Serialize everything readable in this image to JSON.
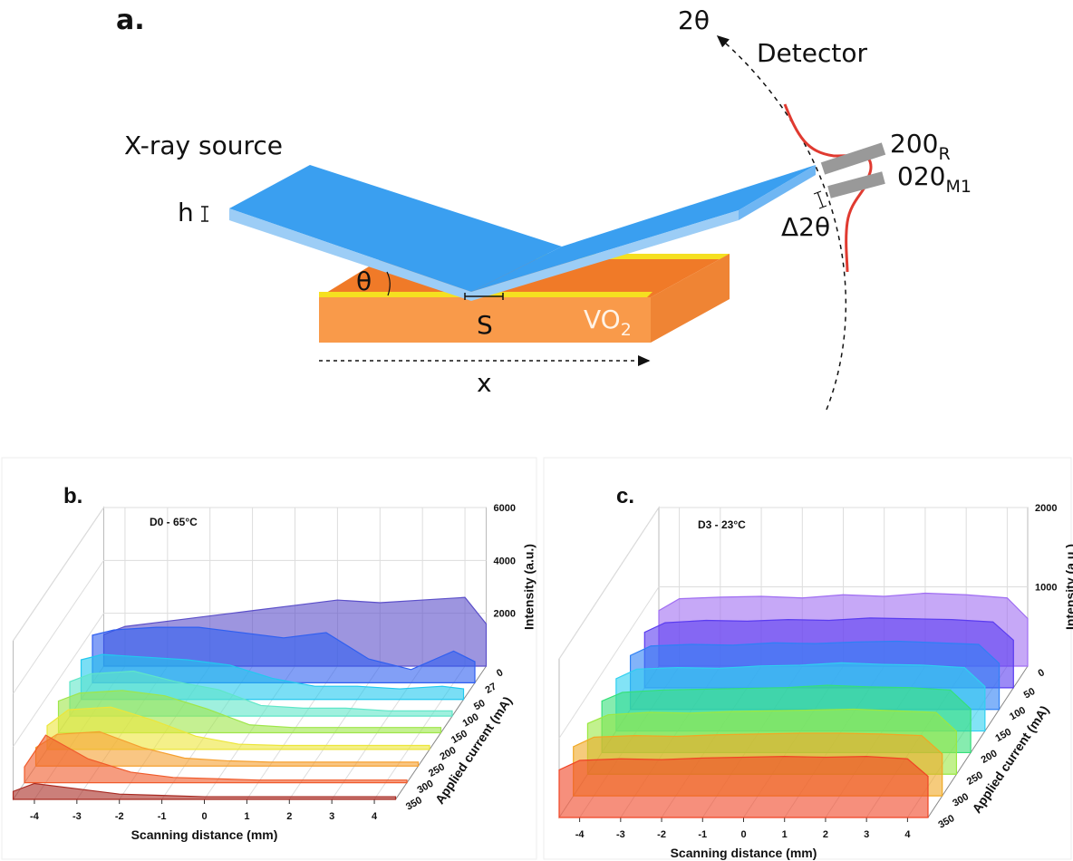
{
  "panel_a": {
    "label": "a.",
    "two_theta": "2θ",
    "detector": "Detector",
    "source": "X-ray source",
    "h": "h",
    "theta": "θ",
    "s": "S",
    "sample": {
      "text": "VO",
      "sub": "2"
    },
    "x_axis": "x",
    "peak_1": {
      "text": "200",
      "sub": "R"
    },
    "peak_2": {
      "text": "020",
      "sub": "M1"
    },
    "delta": "Δ2θ"
  },
  "chart_data": [
    {
      "type": "waterfall3d",
      "panel_label": "b.",
      "annotation": "D0 - 65°C",
      "x_label": "Scanning distance (mm)",
      "z_label": "Intensity (a.u.)",
      "depth_label": "Applied current (mA)",
      "x": [
        -4.5,
        -4,
        -3,
        -2,
        -1,
        0,
        1,
        2,
        3,
        4,
        4.5
      ],
      "xlim": [
        -4.5,
        4.5
      ],
      "xticks": [
        -4,
        -3,
        -2,
        -1,
        0,
        1,
        2,
        3,
        4
      ],
      "ylim": [
        0,
        6000
      ],
      "yticks": [
        2000,
        4000,
        6000
      ],
      "series": [
        {
          "name": "0",
          "color": "#5b4fc9",
          "values": [
            1200,
            1500,
            1700,
            1900,
            2100,
            2300,
            2500,
            2400,
            2500,
            2600,
            1600
          ]
        },
        {
          "name": "27",
          "color": "#2f5ff0",
          "values": [
            1800,
            2000,
            2100,
            2100,
            1900,
            1700,
            1900,
            900,
            500,
            1200,
            800
          ]
        },
        {
          "name": "50",
          "color": "#22c8ef",
          "values": [
            1500,
            1700,
            1600,
            1500,
            1300,
            800,
            500,
            500,
            400,
            500,
            400
          ]
        },
        {
          "name": "100",
          "color": "#5fe6c8",
          "values": [
            1300,
            1600,
            1700,
            1300,
            1000,
            400,
            300,
            300,
            200,
            200,
            200
          ]
        },
        {
          "name": "150",
          "color": "#9ee64a",
          "values": [
            1200,
            1500,
            1600,
            1400,
            900,
            300,
            200,
            200,
            200,
            200,
            200
          ]
        },
        {
          "name": "200",
          "color": "#ece63a",
          "values": [
            900,
            1500,
            1600,
            1100,
            500,
            200,
            150,
            150,
            150,
            150,
            150
          ]
        },
        {
          "name": "250",
          "color": "#f5a030",
          "values": [
            700,
            1200,
            1300,
            700,
            300,
            200,
            150,
            150,
            150,
            150,
            150
          ]
        },
        {
          "name": "300",
          "color": "#f05a2a",
          "values": [
            600,
            1800,
            900,
            400,
            200,
            150,
            100,
            100,
            100,
            100,
            100
          ]
        },
        {
          "name": "350",
          "color": "#a82a22",
          "values": [
            300,
            600,
            400,
            200,
            150,
            100,
            100,
            100,
            100,
            100,
            100
          ]
        }
      ]
    },
    {
      "type": "waterfall3d",
      "panel_label": "c.",
      "annotation": "D3 - 23°C",
      "x_label": "Scanning distance (mm)",
      "z_label": "Intensity (a.u.)",
      "depth_label": "Applied current (mA)",
      "x": [
        -4.5,
        -4,
        -3,
        -2,
        -1,
        0,
        1,
        2,
        3,
        4,
        4.5
      ],
      "xlim": [
        -4.5,
        4.5
      ],
      "xticks": [
        -4,
        -3,
        -2,
        -1,
        0,
        1,
        2,
        3,
        4
      ],
      "ylim": [
        0,
        2000
      ],
      "yticks": [
        1000,
        2000
      ],
      "series": [
        {
          "name": "0",
          "color": "#a06ef2",
          "values": [
            700,
            850,
            870,
            880,
            860,
            900,
            880,
            920,
            900,
            860,
            600
          ]
        },
        {
          "name": "50",
          "color": "#5a3cf0",
          "values": [
            700,
            820,
            850,
            840,
            860,
            850,
            880,
            870,
            860,
            830,
            600
          ]
        },
        {
          "name": "100",
          "color": "#2f80f5",
          "values": [
            680,
            800,
            820,
            810,
            840,
            830,
            850,
            860,
            840,
            820,
            580
          ]
        },
        {
          "name": "150",
          "color": "#2fd0f0",
          "values": [
            660,
            780,
            800,
            790,
            820,
            830,
            860,
            840,
            830,
            800,
            560
          ]
        },
        {
          "name": "200",
          "color": "#35e07a",
          "values": [
            650,
            760,
            790,
            800,
            810,
            820,
            850,
            830,
            820,
            790,
            550
          ]
        },
        {
          "name": "250",
          "color": "#9ae842",
          "values": [
            640,
            750,
            780,
            770,
            790,
            800,
            810,
            820,
            800,
            780,
            540
          ]
        },
        {
          "name": "300",
          "color": "#f0a824",
          "values": [
            620,
            740,
            760,
            750,
            770,
            780,
            790,
            790,
            780,
            760,
            530
          ]
        },
        {
          "name": "350",
          "color": "#f04424",
          "values": [
            600,
            720,
            740,
            730,
            750,
            760,
            770,
            760,
            770,
            740,
            520
          ]
        }
      ]
    }
  ]
}
